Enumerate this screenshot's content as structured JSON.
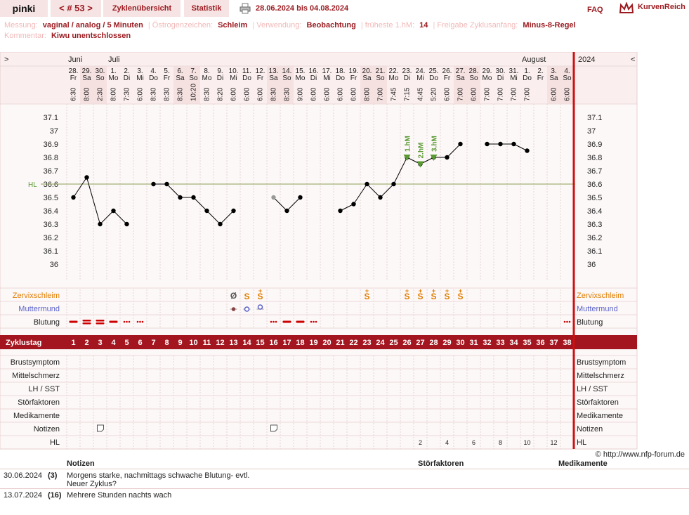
{
  "header": {
    "user": "pinki",
    "cycle_label": "< # 53 >",
    "tab_overview": "Zyklenübersicht",
    "tab_statistics": "Statistik",
    "date_range": "28.06.2024 bis 04.08.2024",
    "faq": "FAQ",
    "brand": "KurvenReich"
  },
  "meta": {
    "measure_key": "Messung:",
    "measure_val": "vaginal / analog / 5 Minuten",
    "estrogen_key": "Östrogenzeichen:",
    "estrogen_val": "Schleim",
    "use_key": "Verwendung:",
    "use_val": "Beobachtung",
    "earliest_key": "früheste 1.hM:",
    "earliest_val": "14",
    "release_key": "Freigabe Zyklusanfang:",
    "release_val": "Minus-8-Regel",
    "comment_key": "Kommentar:",
    "comment_val": "Kiwu unentschlossen"
  },
  "chart_data": {
    "type": "line",
    "months": [
      {
        "label": "Juni",
        "col": 0
      },
      {
        "label": "Juli",
        "col": 3
      },
      {
        "label": "August",
        "col": 34
      },
      {
        "label": "2024",
        "col": 38
      }
    ],
    "nav_left": ">",
    "nav_right": "<",
    "dates": [
      "28.",
      "29.",
      "30.",
      "1.",
      "2.",
      "3.",
      "4.",
      "5.",
      "6.",
      "7.",
      "8.",
      "9.",
      "10.",
      "11.",
      "12.",
      "13.",
      "14.",
      "15.",
      "16.",
      "17.",
      "18.",
      "19.",
      "20.",
      "21.",
      "22.",
      "23.",
      "24.",
      "25.",
      "26.",
      "27.",
      "28.",
      "29.",
      "30.",
      "31.",
      "1.",
      "2.",
      "3.",
      "4."
    ],
    "weekdays": [
      "Fr",
      "Sa",
      "So",
      "Mo",
      "Di",
      "Mi",
      "Do",
      "Fr",
      "Sa",
      "So",
      "Mo",
      "Di",
      "Mi",
      "Do",
      "Fr",
      "Sa",
      "So",
      "Mo",
      "Di",
      "Mi",
      "Do",
      "Fr",
      "Sa",
      "So",
      "Mo",
      "Di",
      "Mi",
      "Do",
      "Fr",
      "Sa",
      "So",
      "Mo",
      "Di",
      "Mi",
      "Do",
      "Fr",
      "Sa",
      "So"
    ],
    "times": [
      "6:30",
      "8:00",
      "2:30",
      "8:00",
      "7:30",
      "6:00",
      "8:30",
      "8:30",
      "8:30",
      "10:20",
      "8:30",
      "8:20",
      "6:00",
      "6:00",
      "6:00",
      "8:30",
      "8:30",
      "9:00",
      "6:00",
      "6:00",
      "6:00",
      "6:00",
      "8:00",
      "7:00",
      "7:45",
      "7:15",
      "4:45",
      "5:20",
      "6:00",
      "7:00",
      "6:00",
      "7:00",
      "7:00",
      "7:00",
      "7:00",
      "",
      "6:00",
      "6:00"
    ],
    "weekend": [
      false,
      true,
      true,
      false,
      false,
      false,
      false,
      false,
      true,
      true,
      false,
      false,
      false,
      false,
      false,
      true,
      true,
      false,
      false,
      false,
      false,
      false,
      true,
      true,
      false,
      false,
      false,
      false,
      false,
      true,
      true,
      false,
      false,
      false,
      false,
      false,
      true,
      true
    ],
    "cycle_days": [
      "1",
      "2",
      "3",
      "4",
      "5",
      "6",
      "7",
      "8",
      "9",
      "10",
      "11",
      "12",
      "13",
      "14",
      "15",
      "16",
      "17",
      "18",
      "19",
      "20",
      "21",
      "22",
      "23",
      "24",
      "25",
      "26",
      "27",
      "28",
      "29",
      "30",
      "31",
      "32",
      "33",
      "34",
      "35",
      "36",
      "37",
      "38"
    ],
    "temps": [
      36.5,
      36.65,
      36.3,
      36.4,
      36.3,
      null,
      36.6,
      36.6,
      36.5,
      36.5,
      36.4,
      36.3,
      36.4,
      null,
      null,
      36.5,
      36.4,
      36.5,
      null,
      null,
      36.4,
      36.45,
      36.6,
      36.5,
      36.6,
      36.8,
      36.75,
      36.8,
      36.8,
      36.9,
      null,
      36.9,
      36.9,
      36.9,
      36.85,
      null,
      null,
      null
    ],
    "excluded_days": [
      16
    ],
    "yticks": [
      "37.1",
      "37",
      "36.9",
      "36.8",
      "36.7",
      "36.6",
      "36.5",
      "36.4",
      "36.3",
      "36.2",
      "36.1",
      "36"
    ],
    "ylim": [
      36.0,
      37.1
    ],
    "coverline_label": "HL",
    "coverline_value": 36.6,
    "higher_measurements": [
      {
        "day": 26,
        "label": "1.hM"
      },
      {
        "day": 27,
        "label": "2.hM"
      },
      {
        "day": 28,
        "label": "3.hM"
      }
    ],
    "rows": {
      "cervical_mucus": "Zervixschleim",
      "cervix": "Muttermund",
      "bleeding": "Blutung",
      "cycle_day": "Zyklustag",
      "breast": "Brustsymptom",
      "mittelschmerz": "Mittelschmerz",
      "lh": "LH / SST",
      "disturbances": "Störfaktoren",
      "medication": "Medikamente",
      "notes": "Notizen",
      "hl": "HL"
    },
    "mucus_marks": [
      {
        "day": 13,
        "sym": "Ø"
      },
      {
        "day": 14,
        "sym": "S"
      },
      {
        "day": 15,
        "sym": "S+"
      },
      {
        "day": 23,
        "sym": "S+"
      },
      {
        "day": 26,
        "sym": "S+"
      },
      {
        "day": 27,
        "sym": "S+"
      },
      {
        "day": 28,
        "sym": "S+"
      },
      {
        "day": 29,
        "sym": "S+"
      },
      {
        "day": 30,
        "sym": "S+"
      }
    ],
    "bleeding": [
      {
        "day": 1,
        "kind": "line1"
      },
      {
        "day": 2,
        "kind": "line2"
      },
      {
        "day": 3,
        "kind": "line2"
      },
      {
        "day": 4,
        "kind": "line1"
      },
      {
        "day": 5,
        "kind": "dots"
      },
      {
        "day": 6,
        "kind": "dots"
      },
      {
        "day": 16,
        "kind": "dots"
      },
      {
        "day": 17,
        "kind": "line1"
      },
      {
        "day": 18,
        "kind": "line1"
      },
      {
        "day": 19,
        "kind": "dots"
      },
      {
        "day": 38,
        "kind": "dots"
      }
    ],
    "note_days": [
      3,
      16
    ],
    "hl_counts": [
      {
        "day": 27,
        "label": "2"
      },
      {
        "day": 29,
        "label": "4"
      },
      {
        "day": 31,
        "label": "6"
      },
      {
        "day": 33,
        "label": "8"
      },
      {
        "day": 35,
        "label": "10"
      },
      {
        "day": 37,
        "label": "12"
      }
    ]
  },
  "credit": "© http://www.nfp-forum.de",
  "notes_table": {
    "col_notes": "Notizen",
    "col_disturbances": "Störfaktoren",
    "col_medication": "Medikamente",
    "entries": [
      {
        "date": "30.06.2024",
        "day": "(3)",
        "text1": "Morgens starke, nachmittags schwache Blutung- evtl.",
        "text2": "Neuer Zyklus?"
      },
      {
        "date": "13.07.2024",
        "day": "(16)",
        "text1": "Mehrere Stunden nachts wach",
        "text2": ""
      }
    ]
  },
  "colors": {
    "accent": "#9b1b20",
    "weekend": "#f6e1e1",
    "header_bg": "#fbeeee",
    "cycle_bar": "#a3151f",
    "orange": "#e07c00",
    "blue": "#5a62c8",
    "green": "#5a9a33",
    "red_line": "#cc1111"
  }
}
